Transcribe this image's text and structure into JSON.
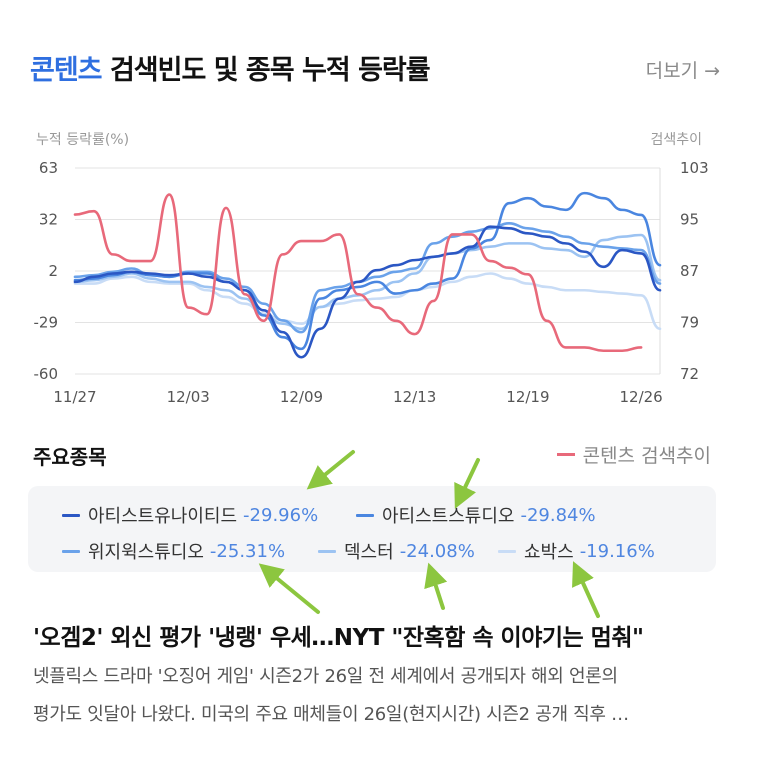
{
  "header": {
    "title_accent": "콘텐츠",
    "title_rest": "검색빈도 및 종목 누적 등락률",
    "more_label": "더보기",
    "more_arrow": "→"
  },
  "chart_data": {
    "type": "line",
    "y_left_label": "누적 등락률(%)",
    "y_right_label": "검색추이",
    "y_left_ticks": [
      "63",
      "32",
      "2",
      "-29",
      "-60"
    ],
    "y_right_ticks": [
      "103",
      "95",
      "87",
      "79",
      "72"
    ],
    "ylim_left": [
      -60,
      63
    ],
    "ylim_right": [
      72,
      103
    ],
    "x_tick_labels": [
      "11/27",
      "12/03",
      "12/09",
      "12/13",
      "12/19",
      "12/26"
    ],
    "x_tick_index": [
      0,
      6,
      12,
      18,
      24,
      30
    ],
    "x_count": 32,
    "grid": "horizontal",
    "series": [
      {
        "name": "아티스트유나이티드",
        "color": "#2b57c4",
        "axis": "left",
        "values": [
          -5,
          -2,
          0,
          1,
          0,
          -1,
          0,
          -2,
          -5,
          -10,
          -22,
          -35,
          -50,
          -33,
          -15,
          -5,
          2,
          5,
          8,
          10,
          12,
          16,
          28,
          27,
          24,
          22,
          18,
          13,
          4,
          14,
          12,
          -10
        ]
      },
      {
        "name": "아티스트스튜디오",
        "color": "#4a86e0",
        "axis": "left",
        "values": [
          -4,
          -3,
          -1,
          1,
          -1,
          -2,
          0,
          0,
          -5,
          -10,
          -25,
          -38,
          -45,
          -15,
          -10,
          -8,
          -5,
          -12,
          -10,
          -6,
          -3,
          15,
          20,
          42,
          45,
          40,
          38,
          48,
          45,
          38,
          35,
          5
        ]
      },
      {
        "name": "위지윅스튜디오",
        "color": "#6aa2ea",
        "axis": "left",
        "values": [
          -2,
          -1,
          1,
          3,
          -1,
          -2,
          1,
          1,
          -3,
          -8,
          -18,
          -28,
          -35,
          -10,
          -8,
          -5,
          -2,
          1,
          3,
          18,
          22,
          25,
          27,
          30,
          27,
          25,
          22,
          18,
          16,
          15,
          14,
          -6
        ]
      },
      {
        "name": "덱스터",
        "color": "#9cc3f2",
        "axis": "left",
        "values": [
          -5,
          -4,
          -2,
          0,
          -3,
          -5,
          -5,
          -8,
          -10,
          -15,
          -25,
          -30,
          -33,
          -20,
          -15,
          -13,
          -10,
          -5,
          0,
          10,
          12,
          14,
          16,
          18,
          18,
          15,
          14,
          10,
          20,
          22,
          23,
          -4
        ]
      },
      {
        "name": "쇼박스",
        "color": "#c8dcf6",
        "axis": "left",
        "values": [
          -6,
          -6,
          -3,
          -2,
          -5,
          -6,
          -6,
          -10,
          -14,
          -18,
          -24,
          -28,
          -30,
          -20,
          -18,
          -16,
          -15,
          -14,
          -10,
          -8,
          -5,
          -2,
          0,
          -3,
          -6,
          -8,
          -10,
          -10,
          -11,
          -12,
          -13,
          -33
        ]
      },
      {
        "name": "콘텐츠 검색추이",
        "color": "#e8697a",
        "axis": "right",
        "values": [
          96,
          96.5,
          90,
          89,
          89,
          99,
          82,
          81,
          97,
          84,
          80,
          90,
          92,
          92,
          93,
          84,
          82,
          80,
          78,
          83,
          93,
          93,
          89,
          88,
          87,
          80,
          76,
          76,
          75.5,
          75.5,
          76
        ]
      }
    ]
  },
  "stocks": {
    "section_label": "주요종목",
    "search_legend": "콘텐츠 검색추이",
    "search_color": "#e8697a",
    "items": [
      {
        "name": "아티스트유나이티드",
        "pct": "-29.96%",
        "color": "#2b57c4"
      },
      {
        "name": "아티스트스튜디오",
        "pct": "-29.84%",
        "color": "#4a86e0"
      },
      {
        "name": "위지윅스튜디오",
        "pct": "-25.31%",
        "color": "#6aa2ea"
      },
      {
        "name": "덱스터",
        "pct": "-24.08%",
        "color": "#9cc3f2"
      },
      {
        "name": "쇼박스",
        "pct": "-19.16%",
        "color": "#c8dcf6"
      }
    ]
  },
  "article": {
    "headline": "'오겜2' 외신 평가 '냉랭' 우세…NYT \"잔혹함 속 이야기는 멈춰\"",
    "line1": "넷플릭스 드라마 '오징어 게임' 시즌2가 26일 전 세계에서 공개되자 해외 언론의",
    "line2": "평가도 잇달아 나왔다. 미국의 주요 매체들이 26일(현지시간) 시즌2 공개 직후 …"
  },
  "annotation_color": "#8cc63f"
}
